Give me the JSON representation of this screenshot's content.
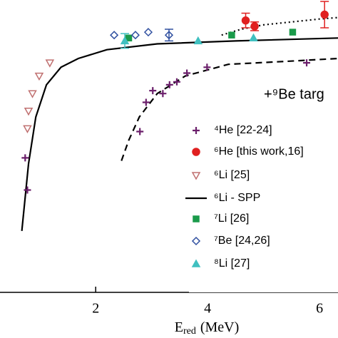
{
  "chart_data": {
    "type": "scatter",
    "xlabel": "E",
    "xlabel_sub": "red",
    "xlabel_unit": "(MeV)",
    "legend_title": "+⁹Be targ",
    "xlim": [
      0.29,
      6.33
    ],
    "ylim": [
      0,
      1
    ],
    "xticks": [
      2,
      4,
      6
    ],
    "series": [
      {
        "name": "⁴He [22-24]",
        "color": "#6b1f6b",
        "marker": "plus",
        "x": [
          2.79,
          2.9,
          3.02,
          3.2,
          3.32,
          3.45,
          3.63,
          3.99,
          5.77,
          0.74,
          0.78
        ],
        "values": [
          0.55,
          0.65,
          0.69,
          0.68,
          0.71,
          0.72,
          0.75,
          0.77,
          0.785,
          0.46,
          0.35
        ]
      },
      {
        "name": "⁶He [this work,16]",
        "color": "#e02020",
        "marker": "circle",
        "x": [
          4.68,
          4.84,
          6.09
        ],
        "values": [
          0.93,
          0.91,
          0.95
        ],
        "errors": [
          0.025,
          0.015,
          0.045
        ]
      },
      {
        "name": "⁶Li [25]",
        "color": "#c07070",
        "marker": "tri-down-open",
        "x": [
          1.18,
          0.99,
          0.87,
          0.8,
          0.78
        ],
        "values": [
          0.785,
          0.74,
          0.68,
          0.62,
          0.56
        ]
      },
      {
        "name": "⁶Li - SPP",
        "color": "#000000",
        "line": "solid",
        "x": [
          0.68,
          0.8,
          0.93,
          1.12,
          1.38,
          1.69,
          2.2,
          3.1,
          4.5,
          6.33
        ],
        "values": [
          0.21,
          0.44,
          0.6,
          0.71,
          0.77,
          0.8,
          0.83,
          0.85,
          0.86,
          0.87
        ]
      },
      {
        "name": "⁷Li [26]",
        "color": "#1a9a4a",
        "marker": "square",
        "x": [
          2.59,
          4.43,
          5.52
        ],
        "values": [
          0.87,
          0.88,
          0.89
        ]
      },
      {
        "name": "⁷Be [24,26]",
        "color": "#3050a0",
        "marker": "diamond-open",
        "x": [
          2.33,
          2.71,
          2.94,
          3.31
        ],
        "values": [
          0.88,
          0.88,
          0.89,
          0.88
        ],
        "errors": [
          0,
          0,
          0,
          0.02
        ]
      },
      {
        "name": "⁸Li [27]",
        "color": "#40c0c0",
        "marker": "tri-up",
        "x": [
          2.52,
          3.83,
          4.82
        ],
        "values": [
          0.86,
          0.86,
          0.87
        ],
        "errors": [
          0.025,
          0,
          0
        ]
      },
      {
        "color": "#000000",
        "line": "dotted",
        "x": [
          4.25,
          4.6,
          5,
          5.5,
          6,
          6.33
        ],
        "values": [
          0.88,
          0.9,
          0.915,
          0.925,
          0.935,
          0.94
        ]
      },
      {
        "color": "#000000",
        "line": "dashed",
        "x": [
          2.46,
          2.59,
          2.78,
          3.1,
          3.6,
          4.37,
          5.39,
          6.33
        ],
        "values": [
          0.45,
          0.52,
          0.6,
          0.68,
          0.74,
          0.78,
          0.79,
          0.8
        ]
      }
    ]
  }
}
